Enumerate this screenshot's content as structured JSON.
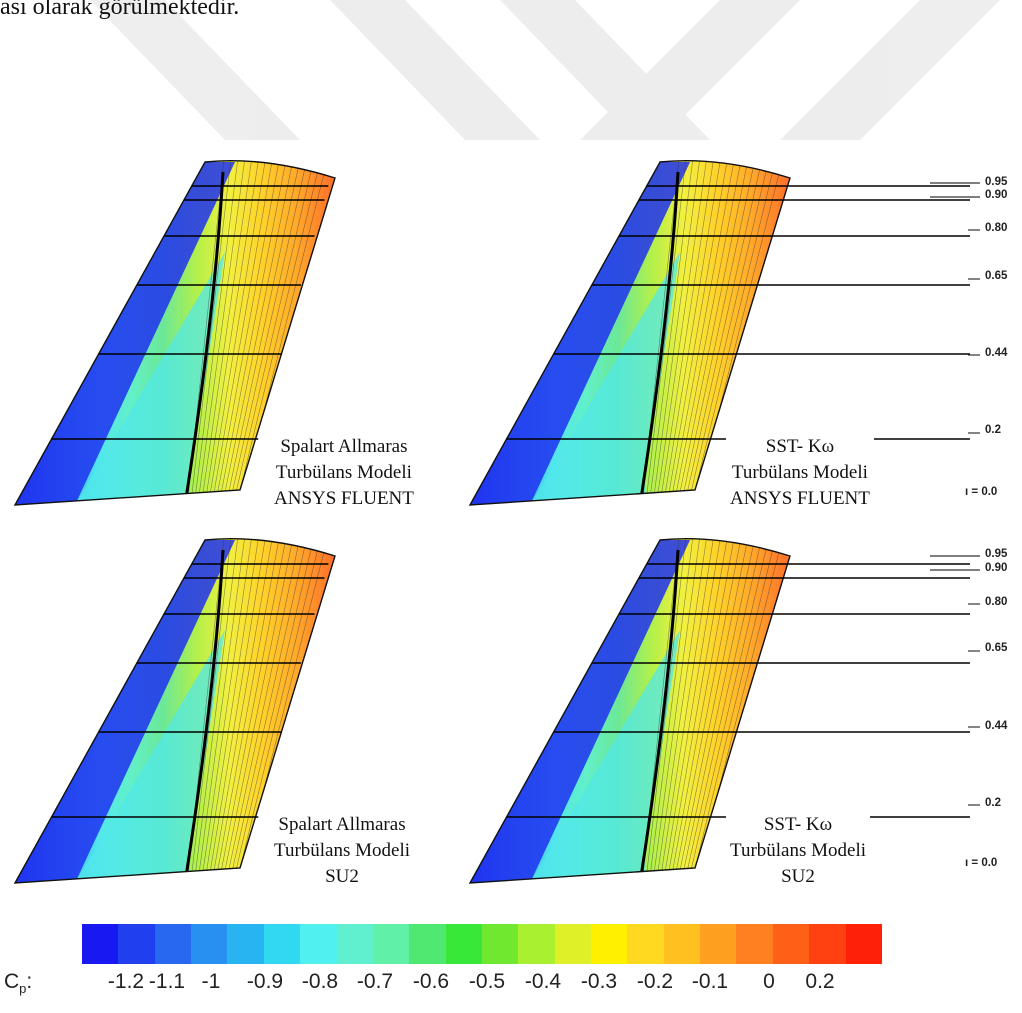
{
  "top_text": "ası olarak görülmektedir.",
  "panels": [
    {
      "id": "sa-fluent",
      "caption": [
        "Spalart Allmaras",
        "Turbülans Modeli",
        "ANSYS FLUENT"
      ]
    },
    {
      "id": "sst-fluent",
      "caption": [
        "SST- Kω",
        "Turbülans Modeli",
        "ANSYS FLUENT"
      ]
    },
    {
      "id": "sa-su2",
      "caption": [
        "Spalart Allmaras",
        "Turbülans Modeli",
        "SU2"
      ]
    },
    {
      "id": "sst-su2",
      "caption": [
        "SST- Kω",
        "Turbülans Modeli",
        "SU2"
      ]
    }
  ],
  "stations": {
    "labels": [
      "0.95",
      "0.90",
      "0.80",
      "0.65",
      "0.44",
      "0.2",
      "0.0"
    ],
    "zero_prefix": "ı = "
  },
  "colorbar": {
    "label_main": "C",
    "label_sub": "p",
    "label_suffix": ":",
    "ticks": [
      "-1.2",
      "-1.1",
      "-1",
      "-0.9",
      "-0.8",
      "-0.7",
      "-0.6",
      "-0.5",
      "-0.4",
      "-0.3",
      "-0.2",
      "-0.1",
      "0",
      "0.2"
    ],
    "colors": [
      "#1818f0",
      "#2040f0",
      "#2868f0",
      "#2890f0",
      "#28b4f0",
      "#30d8f0",
      "#50f0f0",
      "#60f0d0",
      "#60f0a8",
      "#50e870",
      "#38e838",
      "#70e830",
      "#a8f030",
      "#e0f028",
      "#fff000",
      "#ffd820",
      "#ffc020",
      "#ffa020",
      "#ff8020",
      "#ff6018",
      "#ff4010",
      "#ff2008"
    ]
  }
}
